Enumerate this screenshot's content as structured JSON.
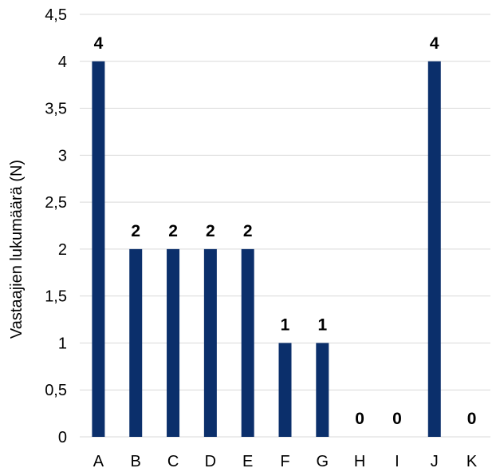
{
  "chart_data": {
    "type": "bar",
    "title": "",
    "xlabel": "",
    "ylabel": "Vastaajien lukumäärä (N)",
    "categories": [
      "A",
      "B",
      "C",
      "D",
      "E",
      "F",
      "G",
      "H",
      "I",
      "J",
      "K"
    ],
    "values": [
      4,
      2,
      2,
      2,
      2,
      1,
      1,
      0,
      0,
      4,
      0
    ],
    "data_labels": [
      "4",
      "2",
      "2",
      "2",
      "2",
      "1",
      "1",
      "0",
      "0",
      "4",
      "0"
    ],
    "ylim": [
      0,
      4.5
    ],
    "yticks": [
      {
        "value": 0,
        "label": "0"
      },
      {
        "value": 0.5,
        "label": "0,5"
      },
      {
        "value": 1,
        "label": "1"
      },
      {
        "value": 1.5,
        "label": "1,5"
      },
      {
        "value": 2,
        "label": "2"
      },
      {
        "value": 2.5,
        "label": "2,5"
      },
      {
        "value": 3,
        "label": "3"
      },
      {
        "value": 3.5,
        "label": "3,5"
      },
      {
        "value": 4,
        "label": "4"
      },
      {
        "value": 4.5,
        "label": "4,5"
      }
    ],
    "grid": true,
    "bar_color": "#0b2f6b",
    "grid_color": "#d9d9d9"
  }
}
